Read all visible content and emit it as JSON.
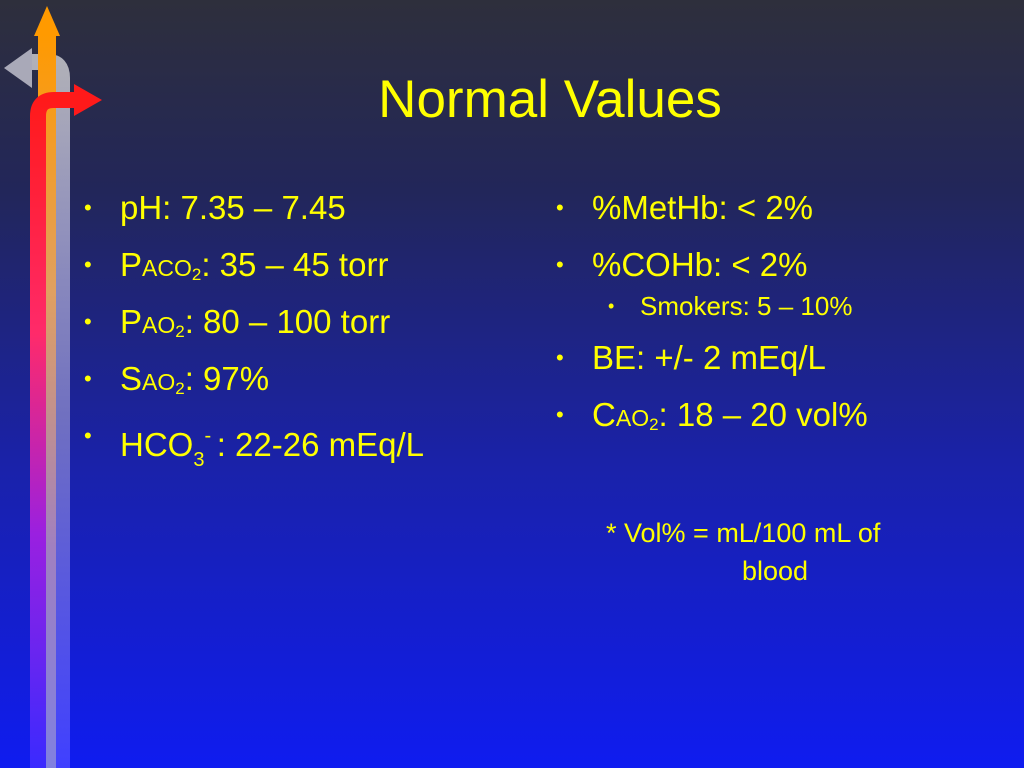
{
  "slide": {
    "title": "Normal Values",
    "bullet_glyph": "•",
    "left_column": [
      {
        "name": "ph",
        "label": "pH:  7.35 – 7.45"
      },
      {
        "name": "paco2",
        "p": "P",
        "a": "A",
        "gas": "CO",
        "sub": "2",
        "value": ":  35 – 45 torr"
      },
      {
        "name": "pao2",
        "p": "P",
        "a": "A",
        "gas": "O",
        "sub": "2",
        "value": ": 80 – 100 torr"
      },
      {
        "name": "sao2",
        "p": "S",
        "a": "A",
        "gas": "O",
        "sub": "2",
        "value": ": 97%"
      },
      {
        "name": "hco3",
        "base": "HCO",
        "sub": "3",
        "sup": "- ",
        "value": ":  22-26 mEq/L"
      }
    ],
    "right_column": [
      {
        "name": "methb",
        "label": "%MetHb:  < 2%"
      },
      {
        "name": "cohb",
        "label": "%COHb: < 2%"
      },
      {
        "name": "smokers",
        "label": "Smokers: 5 – 10%"
      },
      {
        "name": "be",
        "label": "BE:  +/- 2 mEq/L"
      },
      {
        "name": "cao2",
        "p": "C",
        "a": "A",
        "gas": "O",
        "sub": "2",
        "value": ": 18 – 20 vol%"
      }
    ],
    "footnote": {
      "line1": "* Vol%  =  mL/100 mL of",
      "line2": "blood"
    }
  },
  "colors": {
    "text": "#ffff00",
    "arrow_orange": "#ff9900",
    "arrow_red": "#ff1a1a",
    "arrow_gray": "#a7a7b7",
    "arrow_blue": "#3333ff"
  }
}
